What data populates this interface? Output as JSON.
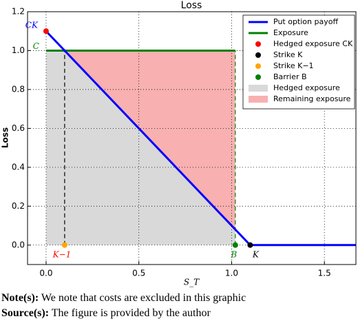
{
  "chart_data": {
    "type": "line",
    "title": "Loss",
    "x_label": "S_T",
    "y_label": "Loss",
    "xlim": [
      -0.1,
      1.67
    ],
    "ylim": [
      -0.1,
      1.2
    ],
    "xticks": [
      {
        "value": 0,
        "label": "0.0"
      },
      {
        "value": 0.5,
        "label": "0.5"
      },
      {
        "value": 1,
        "label": "1.0"
      },
      {
        "value": 1.5,
        "label": "1.5"
      }
    ],
    "yticks": [
      {
        "value": 0,
        "label": "0.0"
      },
      {
        "value": 0.2,
        "label": "0.2"
      },
      {
        "value": 0.4,
        "label": "0.4"
      },
      {
        "value": 0.6,
        "label": "0.6"
      },
      {
        "value": 0.8,
        "label": "0.8"
      },
      {
        "value": 1,
        "label": "1.0"
      },
      {
        "value": 1.2,
        "label": "1.2"
      }
    ],
    "grid": true,
    "legend": "upper right",
    "areas": [
      {
        "name": "Hedged exposure",
        "color": "#d9d9d9",
        "x": [
          0,
          0.1,
          1.02
        ],
        "values": [
          1.0,
          1.0,
          0.08
        ],
        "base": [
          0,
          0,
          0
        ]
      },
      {
        "name": "Remaining exposure",
        "color": "#f8b0b0",
        "x": [
          0.1,
          1.02
        ],
        "values": [
          1.0,
          1.0
        ],
        "base": [
          1.0,
          0.08
        ]
      }
    ],
    "series": [
      {
        "name": "Put option payoff",
        "kind": "line",
        "color": "#0000ff",
        "x": [
          0,
          1.1,
          1.67
        ],
        "values": [
          1.1,
          0,
          0
        ]
      },
      {
        "name": "Exposure",
        "kind": "line",
        "color": "#007f00",
        "x": [
          0,
          1.02
        ],
        "values": [
          1.0,
          1.0
        ]
      },
      {
        "name": "Hedged exposure CK",
        "kind": "point",
        "color": "#ff0000",
        "x": [
          0
        ],
        "values": [
          1.1
        ]
      },
      {
        "name": "Strike K",
        "kind": "point",
        "color": "#000000",
        "x": [
          1.1
        ],
        "values": [
          0
        ]
      },
      {
        "name": "Strike K−1",
        "kind": "point",
        "color": "#ffa500",
        "x": [
          0.1
        ],
        "values": [
          0
        ]
      },
      {
        "name": "Barrier B",
        "kind": "point",
        "color": "#008000",
        "x": [
          1.02
        ],
        "values": [
          0
        ]
      }
    ],
    "annotations": [
      {
        "text": "CK",
        "x": 0,
        "y": 1.1,
        "color": "#0000ff"
      },
      {
        "text": "C",
        "x": 0,
        "y": 1.0,
        "color": "#007f00"
      },
      {
        "text": "K−1",
        "x": 0.1,
        "y": 0,
        "color": "#ff0000"
      },
      {
        "text": "B",
        "x": 1.02,
        "y": 0,
        "color": "#007f00"
      },
      {
        "text": "K",
        "x": 1.1,
        "y": 0,
        "color": "#000000"
      }
    ]
  },
  "notes": [
    {
      "label": "Note(s):",
      "text": "We note that costs are excluded in this graphic"
    },
    {
      "label": "Source(s):",
      "text": "The figure is provided by the author"
    }
  ]
}
